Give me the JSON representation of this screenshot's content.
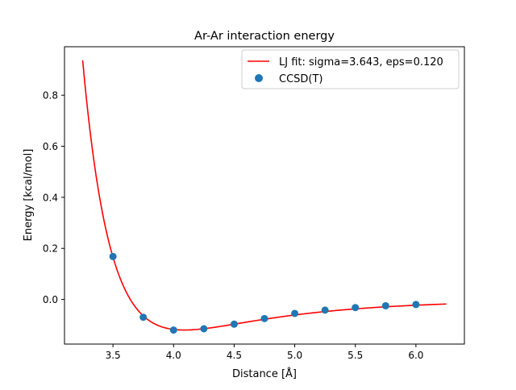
{
  "chart_data": {
    "type": "line",
    "title": "Ar-Ar interaction energy",
    "xlabel": "Distance [Å]",
    "ylabel": "Energy [kcal/mol]",
    "xlim": [
      3.1,
      6.4
    ],
    "ylim": [
      -0.175,
      0.99
    ],
    "xticks": [
      3.5,
      4.0,
      4.5,
      5.0,
      5.5,
      6.0
    ],
    "yticks": [
      0.0,
      0.2,
      0.4,
      0.6,
      0.8
    ],
    "xtick_labels": [
      "3.5",
      "4.0",
      "4.5",
      "5.0",
      "5.5",
      "6.0"
    ],
    "ytick_labels": [
      "0.0",
      "0.2",
      "0.4",
      "0.6",
      "0.8"
    ],
    "grid": false,
    "legend_position": "top-right",
    "series": [
      {
        "name": "LJ fit: sigma=3.643, eps=0.120",
        "kind": "line",
        "color": "#ff0000",
        "model": "lennard-jones",
        "sigma": 3.643,
        "eps": 0.12,
        "x_range": [
          3.25,
          6.25
        ]
      },
      {
        "name": "CCSD(T)",
        "kind": "scatter",
        "color": "#1f77b4",
        "x": [
          3.5,
          3.75,
          4.0,
          4.25,
          4.5,
          4.75,
          5.0,
          5.25,
          5.5,
          5.75,
          6.0
        ],
        "y": [
          0.168,
          -0.07,
          -0.12,
          -0.115,
          -0.097,
          -0.075,
          -0.055,
          -0.042,
          -0.032,
          -0.025,
          -0.02
        ]
      }
    ]
  }
}
